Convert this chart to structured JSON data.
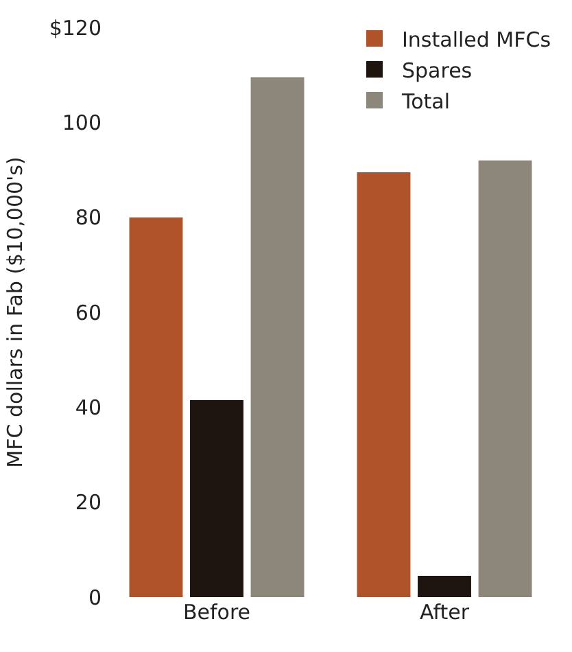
{
  "chart_data": {
    "type": "bar",
    "ylabel": "MFC dollars in Fab ($10,000's)",
    "categories": [
      "Before",
      "After"
    ],
    "series": [
      {
        "name": "Installed MFCs",
        "color": "#b0532a",
        "values": [
          80,
          89.5
        ]
      },
      {
        "name": "Spares",
        "color": "#1e1510",
        "values": [
          41.5,
          4.5
        ]
      },
      {
        "name": "Total",
        "color": "#8c877a",
        "values": [
          109.5,
          92
        ]
      }
    ],
    "ylim": [
      0,
      120
    ],
    "yticks": [
      0,
      20,
      40,
      60,
      80,
      100,
      {
        "value": 120,
        "label": "$120"
      }
    ],
    "legend": "top right"
  }
}
